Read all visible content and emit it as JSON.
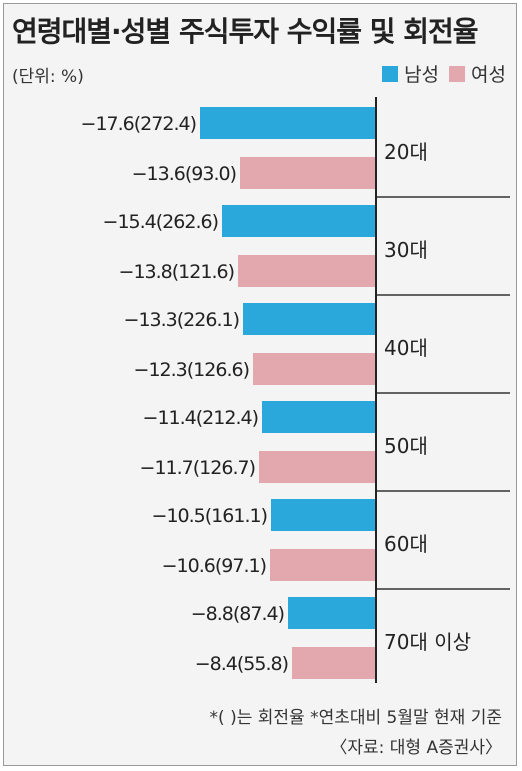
{
  "title": "연령대별·성별 주식투자 수익률 및 회전율",
  "unit": "(단위: %)",
  "colors": {
    "male": "#2aa8dc",
    "female": "#e3a8ad"
  },
  "footnote": "*( )는 회전율 *연초대비 5월말 현재 기준",
  "source": "〈자료: 대형 A증권사〉",
  "chart_data": {
    "type": "bar",
    "orientation": "horizontal",
    "categories": [
      "20대",
      "30대",
      "40대",
      "50대",
      "60대",
      "70대 이상"
    ],
    "series": [
      {
        "name": "남성",
        "values": [
          -17.6,
          -15.4,
          -13.3,
          -11.4,
          -10.5,
          -8.8
        ],
        "turnover": [
          272.4,
          262.6,
          226.1,
          212.4,
          161.1,
          87.4
        ],
        "labels": [
          "−17.6(272.4)",
          "−15.4(262.6)",
          "−13.3(226.1)",
          "−11.4(212.4)",
          "−10.5(161.1)",
          "−8.8(87.4)"
        ]
      },
      {
        "name": "여성",
        "values": [
          -13.6,
          -13.8,
          -12.3,
          -11.7,
          -10.6,
          -8.4
        ],
        "turnover": [
          93.0,
          121.6,
          126.6,
          126.7,
          97.1,
          55.8
        ],
        "labels": [
          "−13.6(93.0)",
          "−13.8(121.6)",
          "−12.3(126.6)",
          "−11.7(126.7)",
          "−10.6(97.1)",
          "−8.4(55.8)"
        ]
      }
    ],
    "legend_position": "top-right"
  }
}
